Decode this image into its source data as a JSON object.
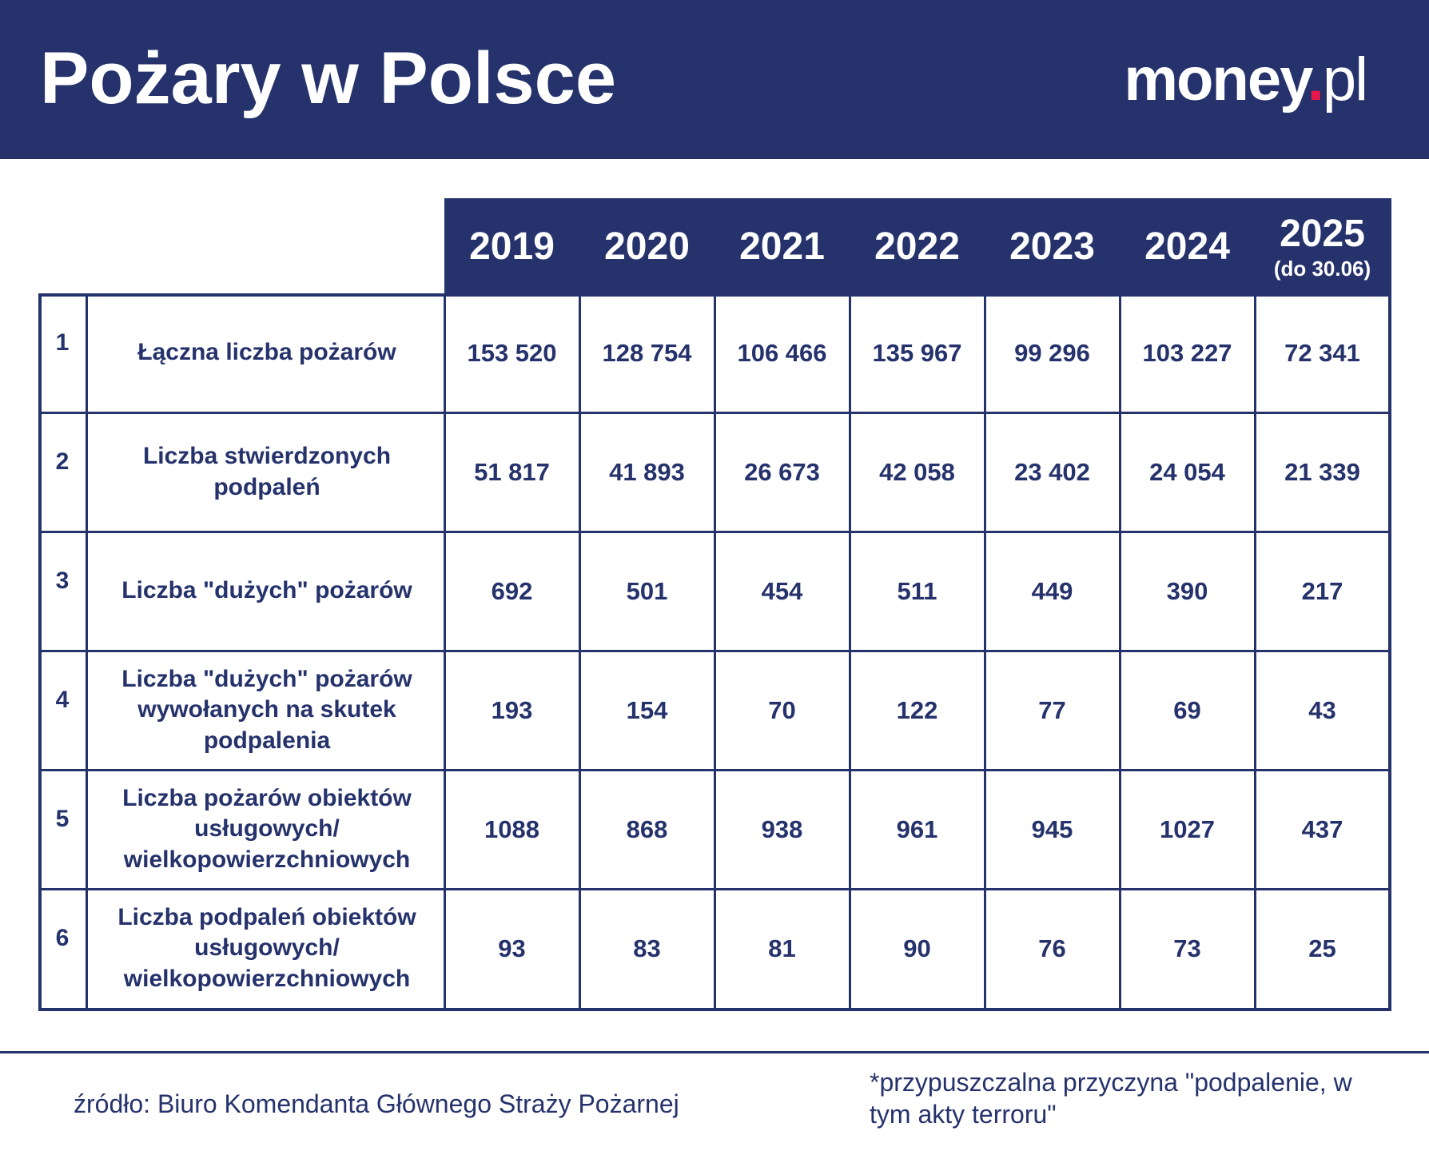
{
  "header": {
    "title": "Pożary w Polsce",
    "logo_main": "money",
    "logo_dot": ".",
    "logo_suffix": "pl"
  },
  "colors": {
    "navy": "#25326b",
    "accent_red": "#e8174b",
    "background": "#ffffff"
  },
  "chart_data": {
    "type": "table",
    "title": "Pożary w Polsce",
    "columns": [
      {
        "year": "2019",
        "note": ""
      },
      {
        "year": "2020",
        "note": ""
      },
      {
        "year": "2021",
        "note": ""
      },
      {
        "year": "2022",
        "note": ""
      },
      {
        "year": "2023",
        "note": ""
      },
      {
        "year": "2024",
        "note": ""
      },
      {
        "year": "2025",
        "note": "(do 30.06)"
      }
    ],
    "rows": [
      {
        "num": "1",
        "label": "Łączna liczba pożarów",
        "values": [
          "153 520",
          "128 754",
          "106 466",
          "135 967",
          "99 296",
          "103 227",
          "72 341"
        ]
      },
      {
        "num": "2",
        "label": "Liczba stwierdzonych podpaleń",
        "values": [
          "51 817",
          "41 893",
          "26 673",
          "42 058",
          "23 402",
          "24 054",
          "21 339"
        ]
      },
      {
        "num": "3",
        "label": "Liczba \"dużych\" pożarów",
        "values": [
          "692",
          "501",
          "454",
          "511",
          "449",
          "390",
          "217"
        ]
      },
      {
        "num": "4",
        "label": "Liczba \"dużych\" pożarów wywołanych na skutek podpalenia",
        "values": [
          "193",
          "154",
          "70",
          "122",
          "77",
          "69",
          "43"
        ]
      },
      {
        "num": "5",
        "label": "Liczba pożarów obiektów usługowych/ wielkopowierzchniowych",
        "values": [
          "1088",
          "868",
          "938",
          "961",
          "945",
          "1027",
          "437"
        ]
      },
      {
        "num": "6",
        "label": "Liczba podpaleń obiektów usługowych/ wielkopowierzchniowych",
        "values": [
          "93",
          "83",
          "81",
          "90",
          "76",
          "73",
          "25"
        ]
      }
    ]
  },
  "footer": {
    "source": "źródło: Biuro Komendanta Głównego Straży Pożarnej",
    "footnote": "*przypuszczalna przyczyna \"podpalenie, w tym akty terroru\""
  }
}
